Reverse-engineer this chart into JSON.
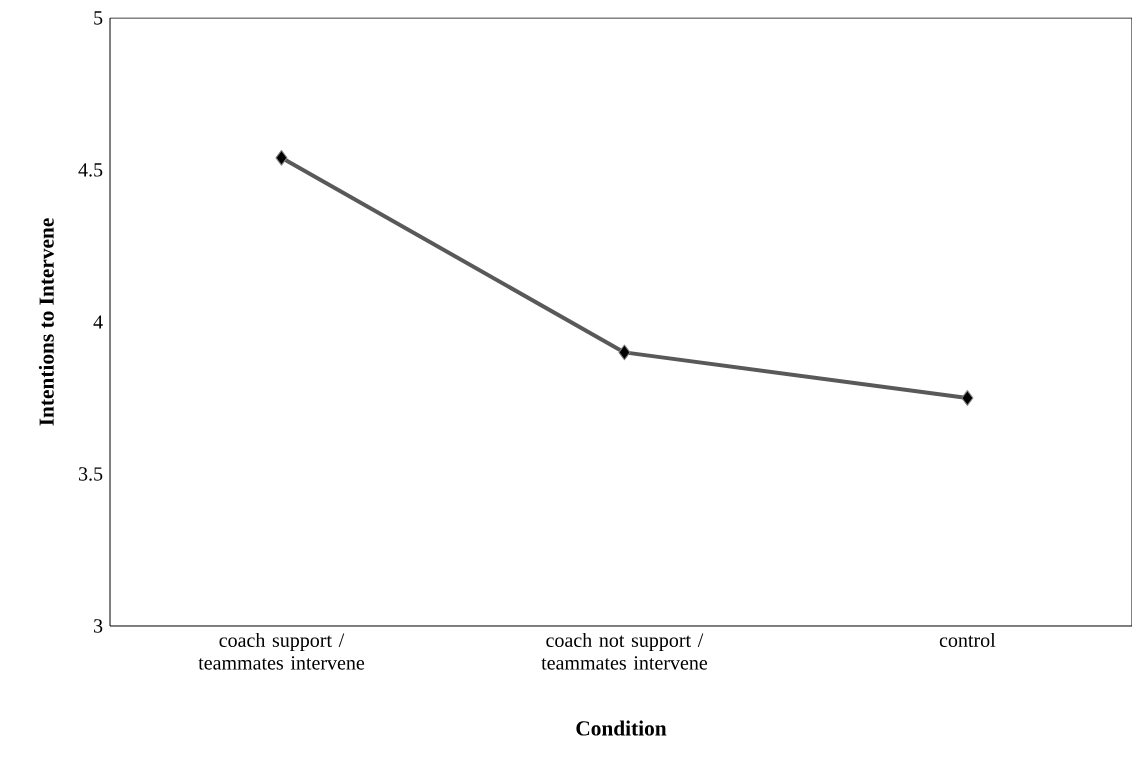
{
  "chart_data": {
    "type": "line",
    "xlabel": "Condition",
    "ylabel": "Intentions to Intervene",
    "categories": [
      "coach support / teammates intervene",
      "coach not support / teammates intervene",
      "control"
    ],
    "series": [
      {
        "color": "#595959",
        "values": [
          4.54,
          3.9,
          3.75
        ]
      }
    ],
    "ylim": [
      3,
      5
    ],
    "yticks": [
      3,
      3.5,
      4,
      4.5,
      5
    ],
    "marker": "diamond",
    "line_style": "solid",
    "grid": false
  }
}
